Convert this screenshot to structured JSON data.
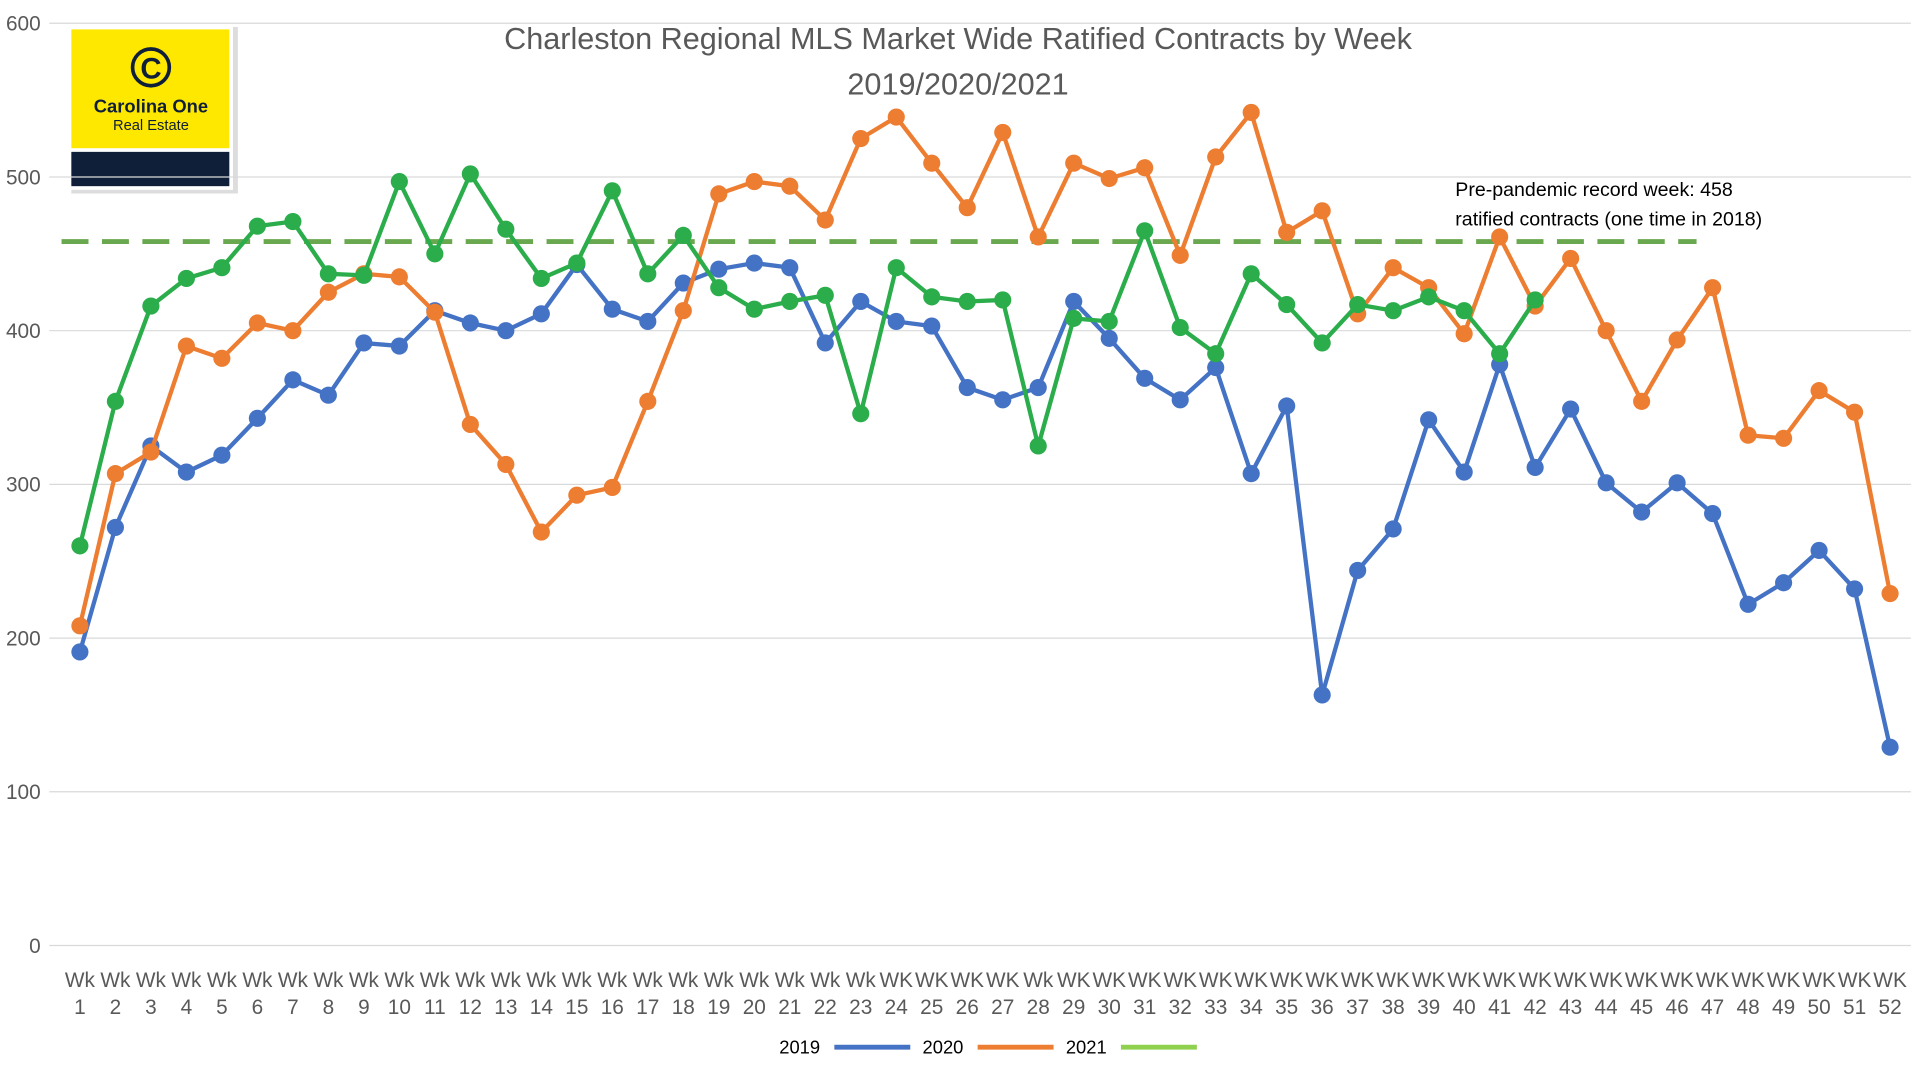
{
  "logo": {
    "name": "Carolina One",
    "tagline": "Real Estate"
  },
  "chart_data": {
    "type": "line",
    "title": "Charleston Regional MLS Market Wide Ratified Contracts by Week",
    "subtitle": "2019/2020/2021",
    "categories": [
      "Wk 1",
      "Wk 2",
      "Wk 3",
      "Wk 4",
      "Wk 5",
      "Wk 6",
      "Wk 7",
      "Wk 8",
      "Wk 9",
      "Wk 10",
      "Wk 11",
      "Wk 12",
      "Wk 13",
      "Wk 14",
      "Wk 15",
      "Wk 16",
      "Wk 17",
      "Wk 18",
      "Wk 19",
      "Wk 20",
      "Wk 21",
      "Wk 22",
      "Wk 23",
      "WK 24",
      "WK 25",
      "WK 26",
      "WK 27",
      "Wk 28",
      "WK 29",
      "WK 30",
      "WK 31",
      "WK 32",
      "WK 33",
      "WK 34",
      "WK 35",
      "WK 36",
      "WK 37",
      "WK 38",
      "WK 39",
      "WK 40",
      "WK 41",
      "WK 42",
      "WK 43",
      "WK 44",
      "WK 45",
      "WK 46",
      "WK 47",
      "WK 48",
      "WK 49",
      "WK 50",
      "WK 51",
      "WK 52"
    ],
    "series": [
      {
        "name": "2019",
        "color": "#4472c4",
        "values": [
          191,
          272,
          325,
          308,
          319,
          343,
          368,
          358,
          392,
          390,
          413,
          405,
          400,
          411,
          443,
          414,
          406,
          431,
          440,
          444,
          441,
          392,
          419,
          406,
          403,
          363,
          355,
          363,
          419,
          395,
          369,
          355,
          376,
          307,
          351,
          163,
          244,
          271,
          342,
          308,
          378,
          311,
          349,
          301,
          282,
          301,
          281,
          222,
          236,
          257,
          232,
          129
        ]
      },
      {
        "name": "2020",
        "color": "#ed7d31",
        "values": [
          208,
          307,
          321,
          390,
          382,
          405,
          400,
          425,
          437,
          435,
          412,
          339,
          313,
          269,
          293,
          298,
          354,
          413,
          489,
          497,
          494,
          472,
          525,
          539,
          509,
          480,
          529,
          461,
          509,
          499,
          506,
          449,
          513,
          542,
          464,
          478,
          411,
          441,
          428,
          398,
          461,
          416,
          447,
          400,
          354,
          394,
          428,
          332,
          330,
          361,
          347,
          229
        ]
      },
      {
        "name": "2021",
        "color": "#2aad4a",
        "legend_color": "#8fd14f",
        "values": [
          260,
          354,
          416,
          434,
          441,
          468,
          471,
          437,
          436,
          497,
          450,
          502,
          466,
          434,
          444,
          491,
          437,
          462,
          428,
          414,
          419,
          423,
          346,
          441,
          422,
          419,
          420,
          325,
          408,
          406,
          465,
          402,
          385,
          437,
          417,
          392,
          417,
          413,
          422,
          413,
          385,
          420,
          null,
          null,
          null,
          null,
          null,
          null,
          null,
          null,
          null,
          null
        ]
      }
    ],
    "reference_line": {
      "value": 458,
      "color": "#6aa84f",
      "label": [
        "Pre-pandemic record week: 458",
        "ratified contracts (one time in 2018)"
      ]
    },
    "ylim": [
      0,
      600
    ],
    "yticks": [
      0,
      100,
      200,
      300,
      400,
      500,
      600
    ],
    "grid": true,
    "legend": "bottom"
  }
}
